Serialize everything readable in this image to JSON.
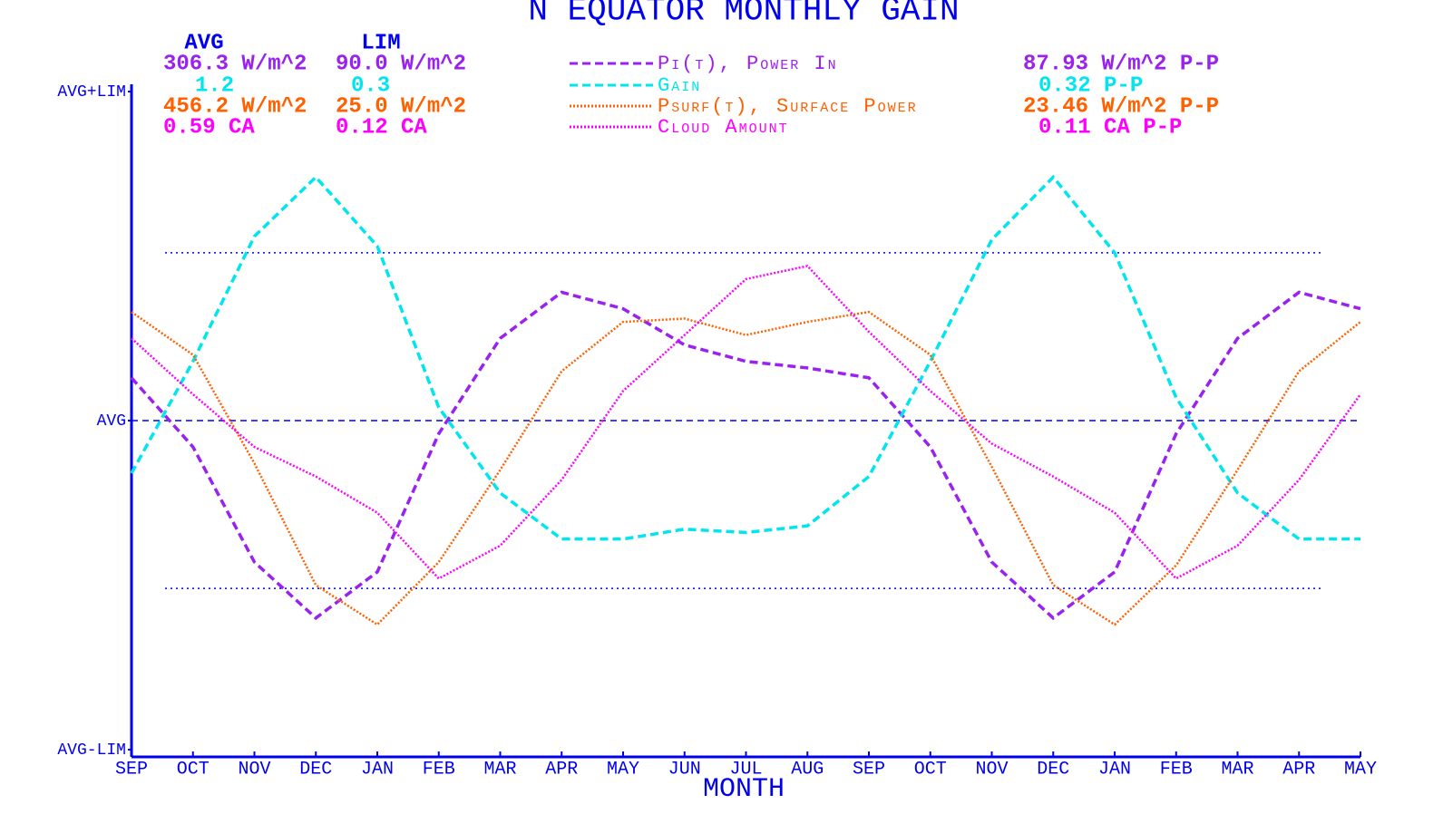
{
  "chart_data": {
    "type": "line",
    "title": "N EQUATOR MONTHLY GAIN",
    "x_label": "MONTH",
    "axis_color": "#0000ee",
    "stats_headers": [
      "AVG",
      "LIM"
    ],
    "categories": [
      "SEP",
      "OCT",
      "NOV",
      "DEC",
      "JAN",
      "FEB",
      "MAR",
      "APR",
      "MAY",
      "JUN",
      "JUL",
      "AUG",
      "SEP",
      "OCT",
      "NOV",
      "DEC",
      "JAN",
      "FEB",
      "MAR",
      "APR",
      "MAY"
    ],
    "ylim": [
      -1,
      1
    ],
    "yticks": [
      {
        "value": -1,
        "label": "AVG-LIM"
      },
      {
        "value": 0,
        "label": "AVG"
      },
      {
        "value": 1,
        "label": "AVG+LIM"
      }
    ],
    "reference_lines": [
      0.51,
      -0.51
    ],
    "series": [
      {
        "name": "Pi(t), Power In",
        "color": "#9a22ee",
        "dash": "dashed",
        "avg": "306.3 W/m^2",
        "lim": "90.0 W/m^2",
        "pp": "87.93 W/m^2 P-P",
        "values": [
          0.13,
          -0.08,
          -0.43,
          -0.6,
          -0.46,
          -0.04,
          0.25,
          0.39,
          0.34,
          0.23,
          0.18,
          0.16,
          0.13,
          -0.08,
          -0.43,
          -0.6,
          -0.46,
          -0.04,
          0.25,
          0.39,
          0.34
        ]
      },
      {
        "name": "Gain",
        "color": "#00e5ee",
        "dash": "dashed",
        "avg": "1.2",
        "lim": "0.3",
        "pp": "0.32  P-P",
        "values": [
          -0.16,
          0.18,
          0.56,
          0.74,
          0.53,
          0.04,
          -0.22,
          -0.36,
          -0.36,
          -0.33,
          -0.34,
          -0.32,
          -0.17,
          0.18,
          0.55,
          0.74,
          0.51,
          0.07,
          -0.22,
          -0.36,
          -0.36
        ]
      },
      {
        "name": "Psurf(t), Surface Power",
        "color": "#ff6000",
        "dash": "dotted",
        "avg": "456.2 W/m^2",
        "lim": "25.0 W/m^2",
        "pp": "23.46 W/m^2 P-P",
        "values": [
          0.33,
          0.2,
          -0.13,
          -0.5,
          -0.62,
          -0.43,
          -0.15,
          0.15,
          0.3,
          0.31,
          0.26,
          0.3,
          0.33,
          0.2,
          -0.14,
          -0.5,
          -0.62,
          -0.44,
          -0.15,
          0.15,
          0.3
        ]
      },
      {
        "name": "Cloud Amount",
        "color": "#ff00ff",
        "dash": "dotted",
        "avg": "0.59 CA",
        "lim": "0.12 CA",
        "pp": "0.11 CA P-P",
        "values": [
          0.25,
          0.08,
          -0.08,
          -0.17,
          -0.28,
          -0.48,
          -0.38,
          -0.18,
          0.09,
          0.26,
          0.43,
          0.47,
          0.27,
          0.09,
          -0.07,
          -0.17,
          -0.28,
          -0.48,
          -0.38,
          -0.18,
          0.08
        ]
      }
    ]
  }
}
